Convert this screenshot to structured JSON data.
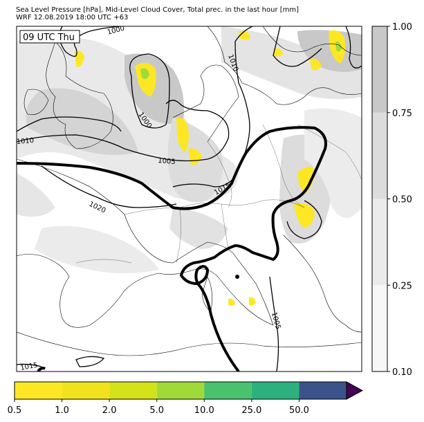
{
  "header": {
    "title_line1": "Sea Level Pressure [hPa], Mid-Level Cloud Cover, Total prec. in the last hour [mm]",
    "title_line2": "WRF 12.08.2019 18:00 UTC +63"
  },
  "map": {
    "time_label": "09 UTC Thu",
    "isobar_labels": [
      "1000",
      "1005",
      "1000",
      "1010",
      "1005",
      "1015",
      "1020",
      "1010",
      "1015"
    ],
    "colors": {
      "land": "#ffffff",
      "coast": "#000000",
      "cloud_light": "#f4f4f4",
      "cloud_mid": "#e6e6e6",
      "cloud_dark": "#c8c8c8",
      "precip_yellow": "#fde725",
      "precip_green": "#a0da39"
    }
  },
  "chart_data": [
    {
      "type": "heatmap",
      "name": "cloud-cover-colorbar",
      "levels": [
        0.1,
        0.25,
        0.5,
        0.75,
        1.0
      ],
      "tick_labels": [
        "0.10",
        "0.25",
        "0.50",
        "0.75",
        "1.00"
      ],
      "colors": [
        "#f7f7f7",
        "#ebebeb",
        "#dcdcdc",
        "#c8c8c8"
      ]
    },
    {
      "type": "heatmap",
      "name": "precipitation-colorbar",
      "levels": [
        0.5,
        1.0,
        2.0,
        5.0,
        10.0,
        25.0,
        50.0
      ],
      "tick_labels": [
        "0.5",
        "1.0",
        "2.0",
        "5.0",
        "10.0",
        "25.0",
        "50.0"
      ],
      "colors": [
        "#fde725",
        "#f0e31d",
        "#d4e21a",
        "#a0da39",
        "#4ac16d",
        "#2cb17e",
        "#3b528b"
      ],
      "extend_color": "#440154"
    }
  ]
}
